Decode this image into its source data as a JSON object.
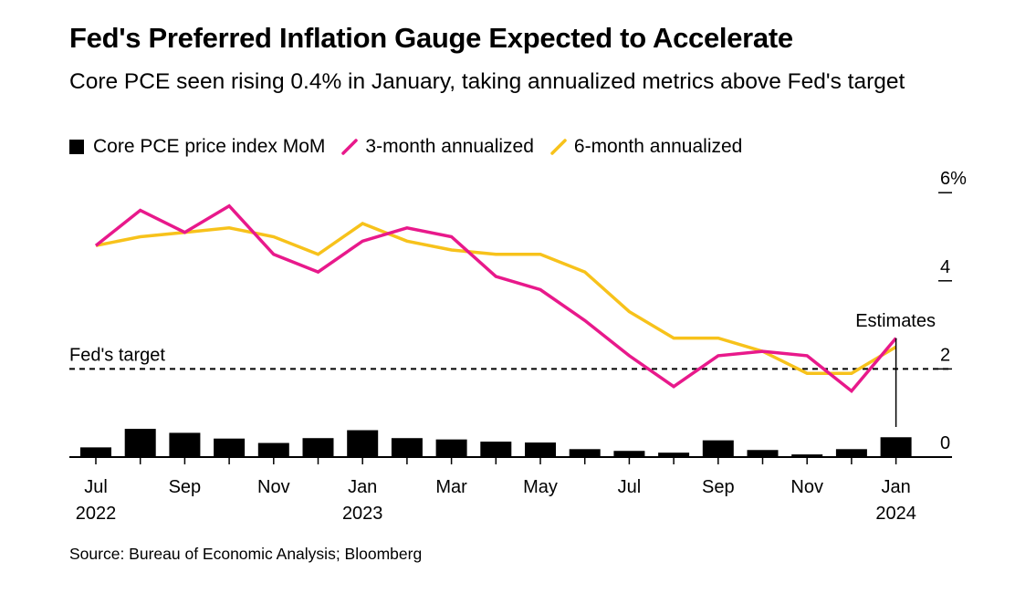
{
  "title": "Fed's Preferred Inflation Gauge Expected to Accelerate",
  "subtitle": "Core PCE seen rising 0.4% in January, taking annualized metrics above Fed's target",
  "legend": {
    "bar_label": "Core PCE price index MoM",
    "line1_label": "3-month annualized",
    "line2_label": "6-month annualized"
  },
  "colors": {
    "bar": "#000000",
    "line1": "#e8198b",
    "line2": "#f7c21b",
    "axis": "#000000"
  },
  "source": "Source: Bureau of Economic Analysis; Bloomberg",
  "chart_data": {
    "type": "bar+line",
    "categories": [
      "Jul 2022",
      "Aug 2022",
      "Sep 2022",
      "Oct 2022",
      "Nov 2022",
      "Dec 2022",
      "Jan 2023",
      "Feb 2023",
      "Mar 2023",
      "Apr 2023",
      "May 2023",
      "Jun 2023",
      "Jul 2023",
      "Aug 2023",
      "Sep 2023",
      "Oct 2023",
      "Nov 2023",
      "Dec 2023",
      "Jan 2024"
    ],
    "series": [
      {
        "name": "Core PCE price index MoM",
        "kind": "bar",
        "values": [
          0.22,
          0.64,
          0.55,
          0.42,
          0.32,
          0.43,
          0.61,
          0.43,
          0.4,
          0.35,
          0.33,
          0.18,
          0.14,
          0.1,
          0.38,
          0.16,
          0.06,
          0.18,
          0.45
        ]
      },
      {
        "name": "3-month annualized",
        "kind": "line",
        "values": [
          4.8,
          5.6,
          5.1,
          5.7,
          4.6,
          4.2,
          4.9,
          5.2,
          5.0,
          4.1,
          3.8,
          3.1,
          2.3,
          1.6,
          2.3,
          2.4,
          2.3,
          1.5,
          2.7
        ]
      },
      {
        "name": "6-month annualized",
        "kind": "line",
        "values": [
          4.8,
          5.0,
          5.1,
          5.2,
          5.0,
          4.6,
          5.3,
          4.9,
          4.7,
          4.6,
          4.6,
          4.2,
          3.3,
          2.7,
          2.7,
          2.4,
          1.9,
          1.9,
          2.5
        ]
      }
    ],
    "x_tick_labels": [
      {
        "index": 0,
        "month": "Jul",
        "year": "2022"
      },
      {
        "index": 2,
        "month": "Sep",
        "year": ""
      },
      {
        "index": 4,
        "month": "Nov",
        "year": ""
      },
      {
        "index": 6,
        "month": "Jan",
        "year": "2023"
      },
      {
        "index": 8,
        "month": "Mar",
        "year": ""
      },
      {
        "index": 10,
        "month": "May",
        "year": ""
      },
      {
        "index": 12,
        "month": "Jul",
        "year": ""
      },
      {
        "index": 14,
        "month": "Sep",
        "year": ""
      },
      {
        "index": 16,
        "month": "Nov",
        "year": ""
      },
      {
        "index": 18,
        "month": "Jan",
        "year": "2024"
      }
    ],
    "y_ticks": [
      {
        "value": 0,
        "label": "0"
      },
      {
        "value": 2,
        "label": "2"
      },
      {
        "value": 4,
        "label": "4"
      },
      {
        "value": 6,
        "label": "6%"
      }
    ],
    "ylim": [
      0,
      6
    ],
    "reference_line": {
      "value": 2,
      "label": "Fed's target",
      "style": "dashed"
    },
    "annotation": {
      "label": "Estimates",
      "index": 18
    },
    "grid": false,
    "legend_position": "top-left"
  }
}
